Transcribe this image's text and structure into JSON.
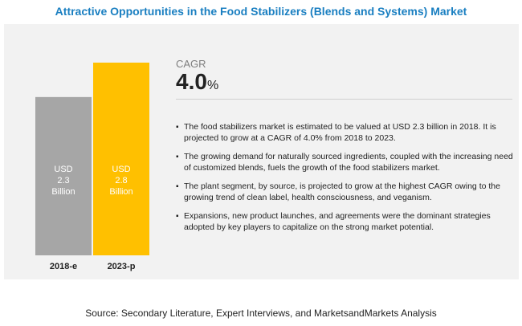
{
  "title": "Attractive Opportunities in the Food Stabilizers (Blends and Systems) Market",
  "chart_data": {
    "type": "bar",
    "categories": [
      "2018-e",
      "2023-p"
    ],
    "values": [
      2.3,
      2.8
    ],
    "bar_labels": [
      [
        "USD",
        "2.3",
        "Billion"
      ],
      [
        "USD",
        "2.8",
        "Billion"
      ]
    ],
    "colors": [
      "#a6a6a6",
      "#ffc000"
    ],
    "label_colors": [
      "#ffffff",
      "#ffffff"
    ],
    "ylim": [
      0,
      2.8
    ]
  },
  "cagr": {
    "label": "CAGR",
    "value": "4.0",
    "unit": "%"
  },
  "bullets": [
    "The food stabilizers market is estimated to be valued at USD 2.3 billion in 2018. It is projected to grow at a CAGR of 4.0% from 2018 to 2023.",
    "The growing demand for naturally sourced ingredients, coupled with the increasing need of customized blends, fuels the growth of the food stabilizers market.",
    "The plant segment, by source, is projected to grow at the highest CAGR owing to the growing trend of clean label, health consciousness, and veganism.",
    "Expansions, new product launches, and agreements were the dominant strategies adopted by key players to capitalize on the strong market potential."
  ],
  "source": "Source: Secondary Literature, Expert Interviews, and MarketsandMarkets Analysis"
}
